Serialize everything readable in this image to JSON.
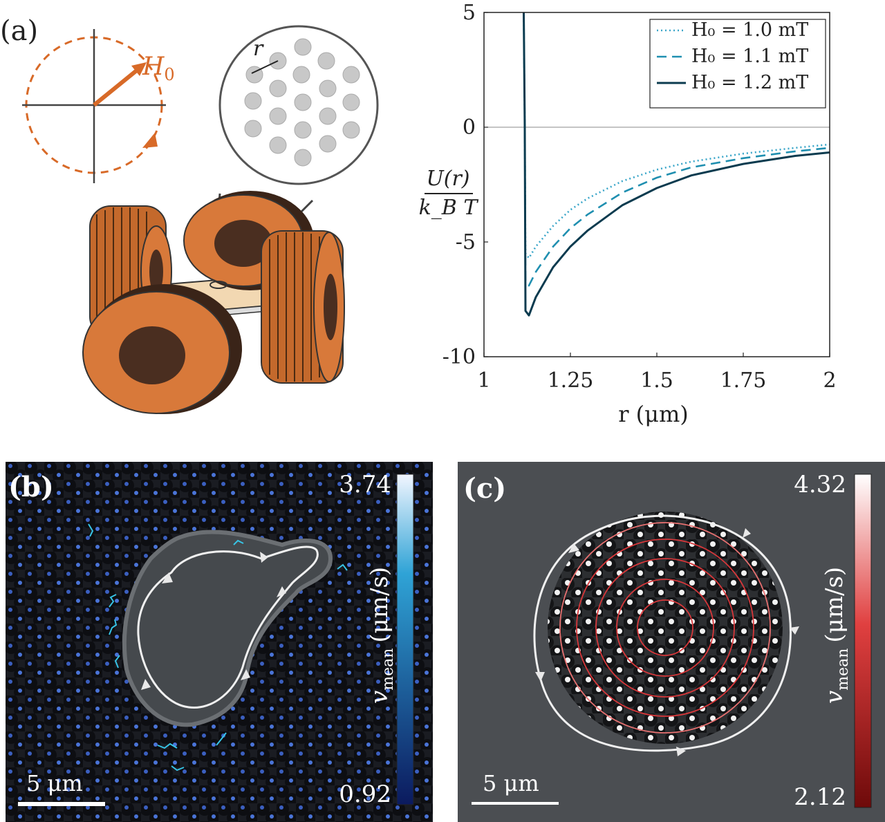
{
  "figure": {
    "panel_a": {
      "label": "(a)",
      "field_label": "H",
      "field_sub": "0",
      "distance_label": "r"
    },
    "panel_b": {
      "label": "(b)",
      "scale_bar": "5 μm",
      "colorbar_max": "3.74",
      "colorbar_min": "0.92",
      "colorbar_label": "v",
      "colorbar_label_sub": "mean",
      "colorbar_units": "(μm/s)",
      "colors": {
        "top": "#f2f6ff",
        "mid": "#2fa3d6",
        "bottom": "#0b1a5e"
      }
    },
    "panel_c": {
      "label": "(c)",
      "scale_bar": "5 μm",
      "colorbar_max": "4.32",
      "colorbar_min": "2.12",
      "colorbar_label": "v",
      "colorbar_label_sub": "mean",
      "colorbar_units": "(μm/s)",
      "colors": {
        "top": "#ffffff",
        "mid": "#e04040",
        "bottom": "#6e0a0a"
      }
    }
  },
  "chart_data": {
    "type": "line",
    "title": "",
    "xlabel": "r (μm)",
    "ylabel_num": "U(r)",
    "ylabel_den": "k_B T",
    "xlim": [
      1,
      2
    ],
    "ylim": [
      -10,
      5
    ],
    "xticks": [
      "1",
      "1.25",
      "1.5",
      "1.75",
      "2"
    ],
    "yticks": [
      "5",
      "0",
      "-5",
      "-10"
    ],
    "legend_position": "top-right",
    "series": [
      {
        "name": "H0 = 1.0 mT",
        "legend_label": "H₀ = 1.0 mT",
        "style": "dotted",
        "color": "#3aa6c9",
        "x": [
          1.115,
          1.118,
          1.12,
          1.13,
          1.15,
          1.2,
          1.25,
          1.3,
          1.4,
          1.5,
          1.6,
          1.75,
          1.9,
          2.0
        ],
        "y": [
          5,
          0,
          -5.5,
          -5.7,
          -5.2,
          -4.3,
          -3.6,
          -3.1,
          -2.35,
          -1.85,
          -1.5,
          -1.15,
          -0.9,
          -0.75
        ]
      },
      {
        "name": "H0 = 1.1 mT",
        "legend_label": "H₀ = 1.1 mT",
        "style": "dashed",
        "color": "#1f8fb0",
        "x": [
          1.115,
          1.118,
          1.12,
          1.13,
          1.15,
          1.2,
          1.25,
          1.3,
          1.4,
          1.5,
          1.6,
          1.75,
          1.9,
          2.0
        ],
        "y": [
          5,
          0,
          -6.7,
          -6.9,
          -6.3,
          -5.2,
          -4.4,
          -3.8,
          -2.85,
          -2.2,
          -1.75,
          -1.35,
          -1.05,
          -0.9
        ]
      },
      {
        "name": "H0 = 1.2 mT",
        "legend_label": "H₀ = 1.2 mT",
        "style": "solid",
        "color": "#0b3b4f",
        "x": [
          1.115,
          1.118,
          1.12,
          1.13,
          1.15,
          1.2,
          1.25,
          1.3,
          1.4,
          1.5,
          1.6,
          1.75,
          1.9,
          2.0
        ],
        "y": [
          5,
          0,
          -8.0,
          -8.2,
          -7.4,
          -6.1,
          -5.2,
          -4.5,
          -3.4,
          -2.65,
          -2.1,
          -1.6,
          -1.25,
          -1.1
        ]
      }
    ]
  }
}
